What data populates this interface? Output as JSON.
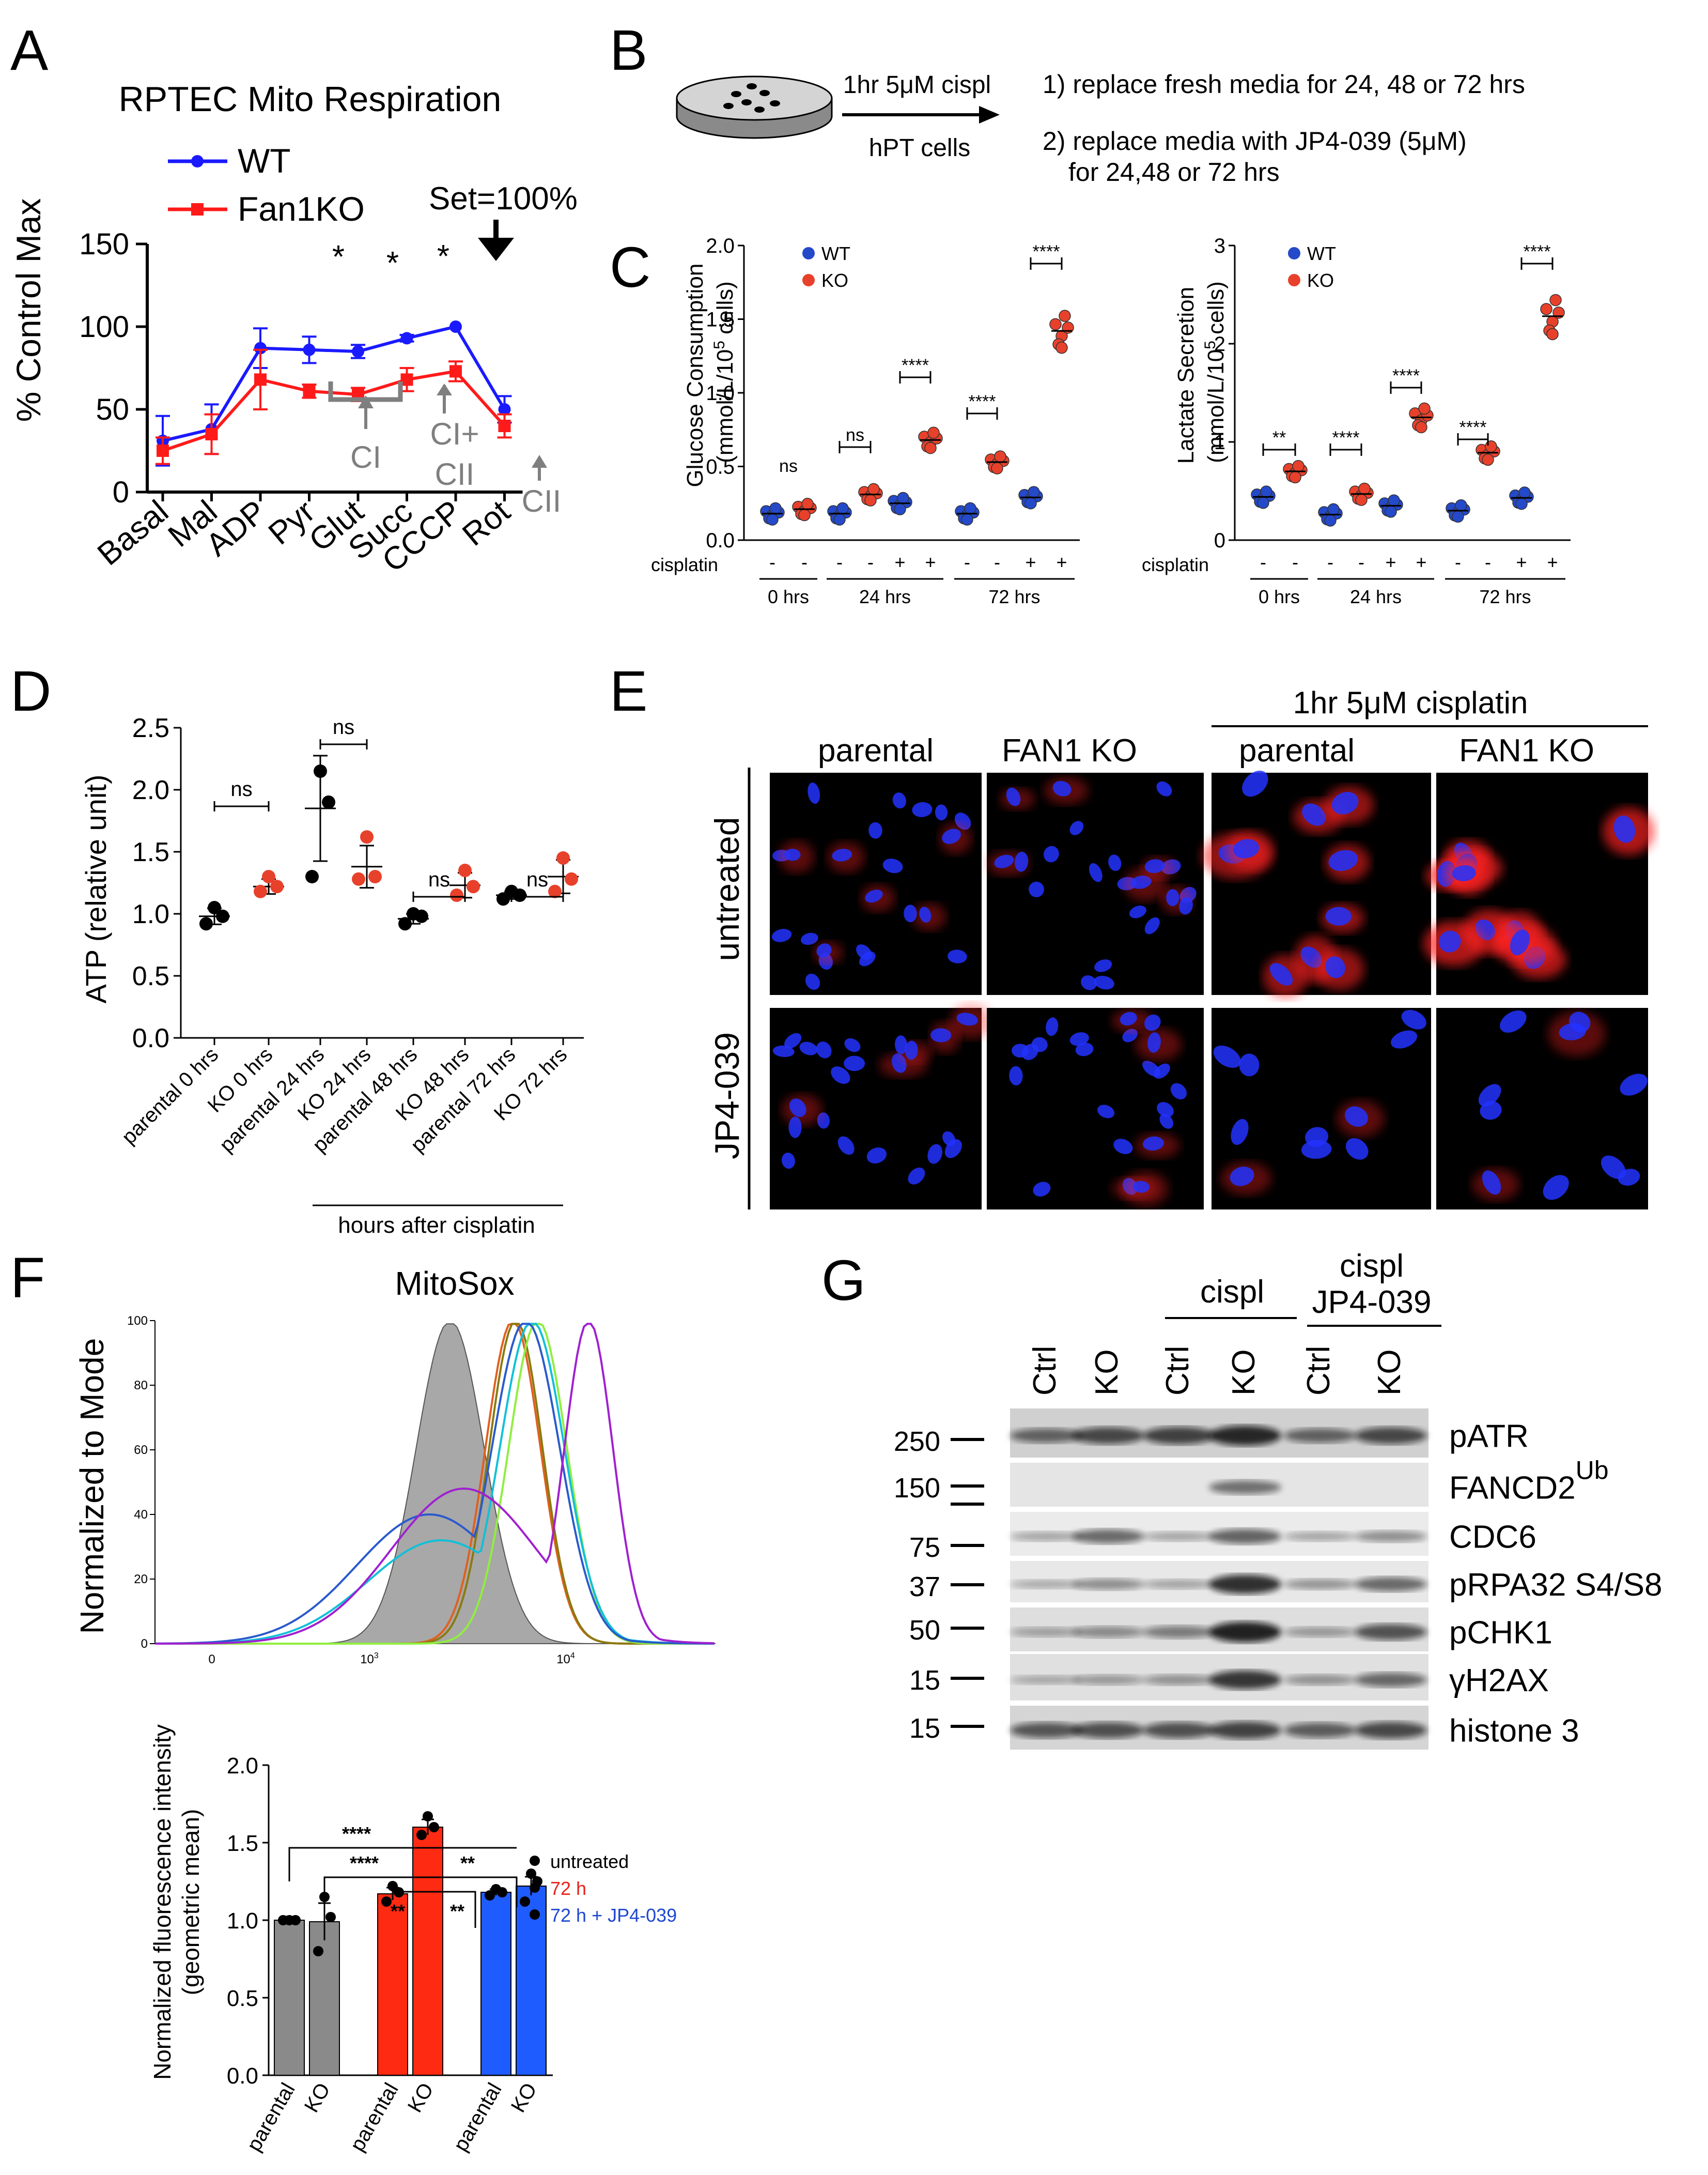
{
  "panel_letters": {
    "a": "A",
    "b": "B",
    "c": "C",
    "d": "D",
    "e": "E",
    "f": "F",
    "g": "G"
  },
  "colors": {
    "wt": "#1a1aff",
    "ko": "#ff1a1a",
    "red_dot": "#e8412b",
    "blue_dot": "#2449c9",
    "gray": "#7f7f7f",
    "bar_red": "#ff2a12",
    "bar_blue": "#1f5cff",
    "bar_gray": "#8a8a8a",
    "nucleus": "#2233ff",
    "mito": "#ff2020"
  },
  "panelA": {
    "title": "RPTEC Mito Respiration",
    "ylabel": "% Control Max",
    "yticks": [
      "0",
      "50",
      "100",
      "150"
    ],
    "categories": [
      "Basal",
      "Mal",
      "ADP",
      "Pyr",
      "Glut",
      "Succ",
      "CCCP",
      "Rot"
    ],
    "legend": [
      "WT",
      "Fan1KO"
    ],
    "annotations": {
      "set": "Set=100%",
      "star": "*",
      "ci": "CI",
      "ci_cii_1": "CI+",
      "ci_cii_2": "CII",
      "cii": "CII"
    }
  },
  "panelB": {
    "arrow_top": "1hr 5μM cispl",
    "arrow_bottom": "hPT cells",
    "step1": "1) replace fresh media for 24, 48 or 72 hrs",
    "step2a": "2) replace media with JP4-039 (5μM)",
    "step2b": "for 24,48 or 72 hrs"
  },
  "panelC": {
    "cisplatin_label": "cisplatin",
    "signs": [
      "-",
      "-",
      "-",
      "-",
      "+",
      "+",
      "-",
      "-",
      "+",
      "+"
    ],
    "groups": [
      "0 hrs",
      "24 hrs",
      "72 hrs"
    ],
    "legend": [
      "WT",
      "KO"
    ],
    "sig": {
      "ns": "ns",
      "p2": "**",
      "p4": "****"
    }
  },
  "panelD": {
    "ylabel": "ATP (relative unit)",
    "yticks": [
      "0.0",
      "0.5",
      "1.0",
      "1.5",
      "2.0",
      "2.5"
    ],
    "categories": [
      "parental 0 hrs",
      "KO 0 hrs",
      "parental 24 hrs",
      "KO 24 hrs",
      "parental 48 hrs",
      "KO 48 hrs",
      "parental 72 hrs",
      "KO 72 hrs"
    ],
    "sig": "ns",
    "footer": "hours after cisplatin"
  },
  "panelE": {
    "top_label": "1hr 5μM cisplatin",
    "columns": [
      "parental",
      "FAN1 KO",
      "parental",
      "FAN1 KO"
    ],
    "rows": [
      "untreated",
      "JP4-039"
    ]
  },
  "panelF": {
    "title": "MitoSox",
    "ylabel": "Normalized to Mode",
    "yticks": [
      "0",
      "20",
      "40",
      "60",
      "80",
      "100"
    ],
    "xticks": [
      "0",
      "10",
      "10"
    ],
    "xtick_exp": [
      "3",
      "4"
    ],
    "bar_ylabel_1": "Normalized fluorescence intensity",
    "bar_ylabel_2": "(geometric mean)",
    "bar_yticks": [
      "0.0",
      "0.5",
      "1.0",
      "1.5",
      "2.0"
    ],
    "bar_categories": [
      "parental",
      "KO",
      "parental",
      "KO",
      "parental",
      "KO"
    ],
    "legend": [
      "untreated",
      "72 h",
      "72 h + JP4-039"
    ],
    "sig": {
      "p4": "****",
      "p2": "**"
    }
  },
  "panelG": {
    "lanes": [
      "Ctrl",
      "KO",
      "Ctrl",
      "KO",
      "Ctrl",
      "KO"
    ],
    "group_cispl": "cispl",
    "group_jp_1": "cispl",
    "group_jp_2": "JP4-039",
    "markers": [
      "250",
      "150",
      "75",
      "37",
      "50",
      "15",
      "15"
    ],
    "proteins": [
      "pATR",
      "FANCD2",
      "CDC6",
      "pRPA32 S4/S8",
      "pCHK1",
      "γH2AX",
      "histone 3"
    ],
    "ub_sup": "Ub"
  },
  "chart_data": [
    {
      "type": "line",
      "title": "RPTEC Mito Respiration",
      "xlabel": "",
      "ylabel": "% Control Max",
      "categories": [
        "Basal",
        "Mal",
        "ADP",
        "Pyr",
        "Glut",
        "Succ",
        "CCCP",
        "Rot"
      ],
      "ylim": [
        0,
        150
      ],
      "series": [
        {
          "name": "WT",
          "values": [
            31,
            38,
            87,
            86,
            85,
            93,
            100,
            50
          ],
          "errors": [
            15,
            15,
            12,
            8,
            4,
            2,
            0,
            8
          ]
        },
        {
          "name": "Fan1KO",
          "values": [
            25,
            35,
            68,
            61,
            59,
            68,
            73,
            40
          ],
          "errors": [
            8,
            12,
            18,
            4,
            4,
            7,
            6,
            7
          ]
        }
      ]
    },
    {
      "type": "scatter",
      "title": "",
      "ylabel": "Glucose Consumption (mmol/L/10^5 cells)",
      "ylim": [
        0,
        2.0
      ],
      "categories": [
        "WT 0h -",
        "KO 0h -",
        "WT 24h -",
        "KO 24h -",
        "WT 24h +",
        "KO 24h +",
        "WT 72h -",
        "KO 72h -",
        "WT 72h +",
        "KO 72h +"
      ],
      "series": [
        {
          "name": "mean",
          "values": [
            0.18,
            0.21,
            0.18,
            0.31,
            0.25,
            0.68,
            0.18,
            0.53,
            0.29,
            1.42
          ]
        }
      ]
    },
    {
      "type": "scatter",
      "title": "",
      "ylabel": "Lactate Secretion (mmol/L/10^5 cells)",
      "ylim": [
        0,
        3
      ],
      "categories": [
        "WT 0h -",
        "KO 0h -",
        "WT 24h -",
        "KO 24h -",
        "WT 24h +",
        "KO 24h +",
        "WT 72h -",
        "KO 72h -",
        "WT 72h +",
        "KO 72h +"
      ],
      "series": [
        {
          "name": "mean",
          "values": [
            0.44,
            0.7,
            0.26,
            0.47,
            0.35,
            1.25,
            0.3,
            0.89,
            0.43,
            2.28
          ]
        }
      ]
    },
    {
      "type": "scatter",
      "title": "",
      "ylabel": "ATP (relative unit)",
      "ylim": [
        0,
        2.5
      ],
      "categories": [
        "parental 0 hrs",
        "KO 0 hrs",
        "parental 24 hrs",
        "KO 24 hrs",
        "parental 48 hrs",
        "KO 48 hrs",
        "parental 72 hrs",
        "KO 72 hrs"
      ],
      "series": [
        {
          "name": "mean",
          "values": [
            0.98,
            1.22,
            1.85,
            1.38,
            0.96,
            1.23,
            1.15,
            1.3
          ]
        }
      ]
    },
    {
      "type": "line",
      "title": "MitoSox",
      "ylabel": "Normalized to Mode",
      "ylim": [
        0,
        100
      ],
      "series": [
        {
          "name": "unstained (gray fill)",
          "peak_x": 240,
          "peak_y": 98
        },
        {
          "name": "untreated parental (orange)",
          "peak_x": 850,
          "peak_y": 98
        },
        {
          "name": "untreated KO (olive)",
          "peak_x": 900,
          "peak_y": 97
        },
        {
          "name": "72 h + JP4-039 parental (green)",
          "peak_x": 1400,
          "peak_y": 96
        },
        {
          "name": "72 h + JP4-039 KO (cyan)",
          "peak_x": 1250,
          "peak_y": 96
        },
        {
          "name": "72 h parental (blue)",
          "peak_x": 1100,
          "peak_y": 98
        },
        {
          "name": "72 h KO (purple)",
          "peak_x": 3900,
          "peak_y": 98
        }
      ]
    },
    {
      "type": "bar",
      "title": "",
      "ylabel": "Normalized fluorescence intensity (geometric mean)",
      "categories": [
        "parental",
        "KO",
        "parental",
        "KO",
        "parental",
        "KO"
      ],
      "ylim": [
        0,
        2.0
      ],
      "series": [
        {
          "name": "geometric mean",
          "values": [
            1.0,
            0.99,
            1.17,
            1.6,
            1.18,
            1.22
          ],
          "groups": [
            "untreated",
            "untreated",
            "72 h",
            "72 h",
            "72 h + JP4-039",
            "72 h + JP4-039"
          ]
        }
      ]
    }
  ]
}
